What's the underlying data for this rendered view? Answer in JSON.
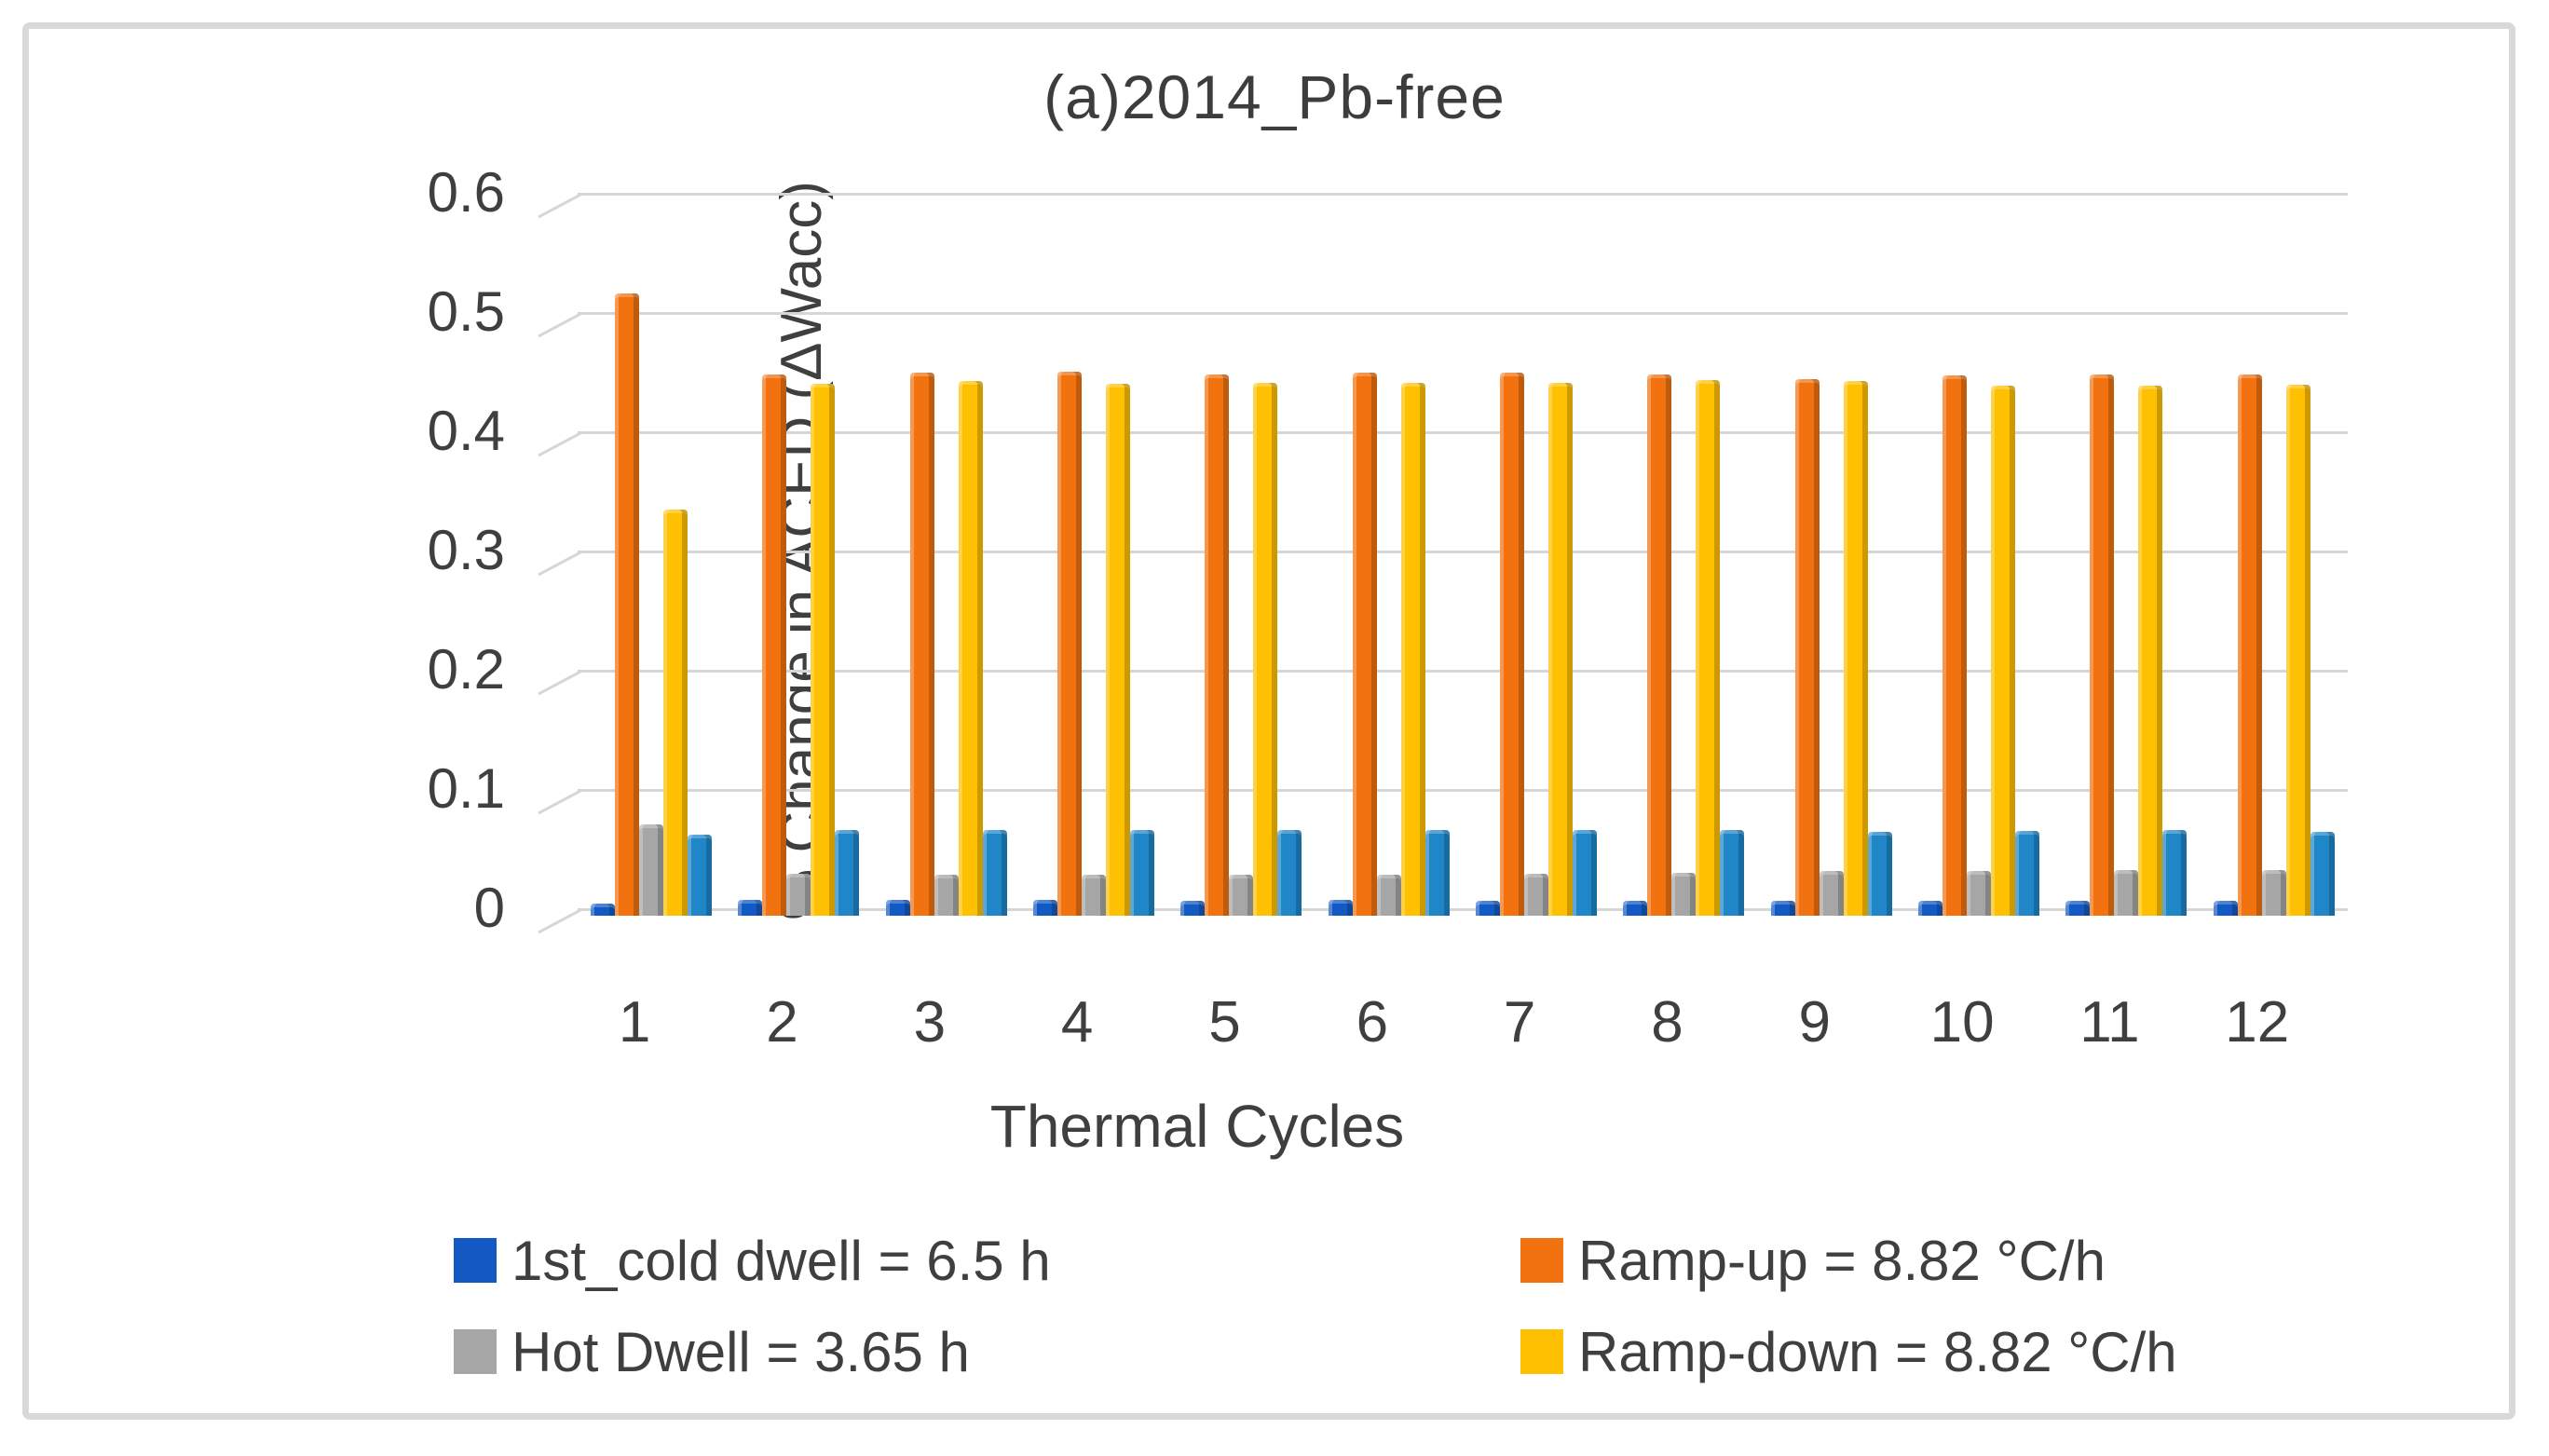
{
  "figure": {
    "title": "(a)2014_Pb-free",
    "y_axis": {
      "title": "% Change in ACED (ΔWacc)",
      "ticks": [
        {
          "label": "0.6",
          "value": 0.6
        },
        {
          "label": "0.5",
          "value": 0.5
        },
        {
          "label": "0.4",
          "value": 0.4
        },
        {
          "label": "0.3",
          "value": 0.3
        },
        {
          "label": "0.2",
          "value": 0.2
        },
        {
          "label": "0.1",
          "value": 0.1
        },
        {
          "label": "0",
          "value": 0.0
        }
      ],
      "min": 0,
      "max": 0.6
    },
    "x_axis": {
      "title": "Thermal Cycles",
      "categories": [
        "1",
        "2",
        "3",
        "4",
        "5",
        "6",
        "7",
        "8",
        "9",
        "10",
        "11",
        "12"
      ]
    },
    "legend": [
      {
        "label": "1st_cold dwell = 6.5 h",
        "color": "#1359c4"
      },
      {
        "label": "Ramp-up = 8.82 °C/h",
        "color": "#f2720f"
      },
      {
        "label": "Hot Dwell = 3.65 h",
        "color": "#a6a6a6"
      },
      {
        "label": "Ramp-down = 8.82 °C/h",
        "color": "#ffc002"
      }
    ],
    "colors": {
      "grid": "#d6d6d6",
      "text": "#3f3f3f",
      "border": "#d9d9d9"
    }
  },
  "chart_data": {
    "type": "bar",
    "title": "(a)2014_Pb-free",
    "xlabel": "Thermal Cycles",
    "ylabel": "% Change in ACED (ΔWacc)",
    "ylim": [
      0,
      0.6
    ],
    "grid": true,
    "legend_position": "bottom",
    "categories": [
      1,
      2,
      3,
      4,
      5,
      6,
      7,
      8,
      9,
      10,
      11,
      12
    ],
    "series": [
      {
        "name": "1st_cold dwell = 6.5 h",
        "color": "#1359c4",
        "legend_visible": true,
        "values": [
          0.004,
          0.007,
          0.007,
          0.007,
          0.006,
          0.007,
          0.006,
          0.006,
          0.006,
          0.006,
          0.006,
          0.006
        ]
      },
      {
        "name": "Ramp-up = 8.82 °C/h",
        "color": "#f2720f",
        "legend_visible": true,
        "values": [
          0.516,
          0.448,
          0.449,
          0.45,
          0.448,
          0.449,
          0.449,
          0.448,
          0.444,
          0.447,
          0.448,
          0.448
        ]
      },
      {
        "name": "Hot Dwell = 3.65 h",
        "color": "#a6a6a6",
        "legend_visible": true,
        "values": [
          0.07,
          0.029,
          0.028,
          0.028,
          0.028,
          0.028,
          0.029,
          0.03,
          0.031,
          0.031,
          0.032,
          0.032
        ]
      },
      {
        "name": "Ramp-down = 8.82 °C/h",
        "color": "#ffc002",
        "legend_visible": true,
        "values": [
          0.334,
          0.44,
          0.442,
          0.44,
          0.441,
          0.441,
          0.441,
          0.443,
          0.442,
          0.438,
          0.438,
          0.439
        ]
      },
      {
        "name": "",
        "color": "#1f86c8",
        "legend_visible": false,
        "values": [
          0.062,
          0.066,
          0.066,
          0.066,
          0.066,
          0.066,
          0.066,
          0.066,
          0.064,
          0.065,
          0.066,
          0.064
        ]
      }
    ]
  }
}
